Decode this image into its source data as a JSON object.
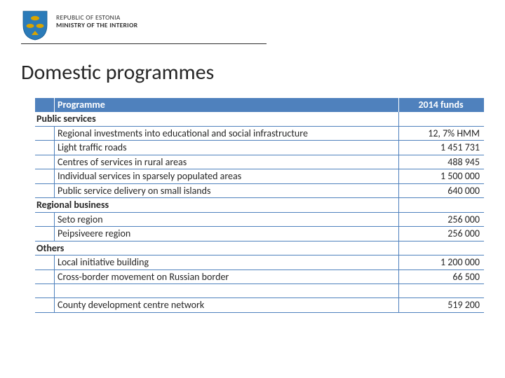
{
  "header": {
    "org_top": "REPUBLIC OF ESTONIA",
    "org_bottom": "MINISTRY OF THE INTERIOR",
    "crest_color": "#2b7bb9"
  },
  "title": "Domestic programmes",
  "table": {
    "header_bg": "#4f81bd",
    "border_color": "#4f81bd",
    "col_programme": "Programme",
    "col_funds": "2014 funds",
    "sections": [
      {
        "name": "Public services",
        "rows": [
          {
            "label": "Regional investments into educational and social infrastructure",
            "value": "12, 7% HMM"
          },
          {
            "label": "Light traffic roads",
            "value": "1 451 731"
          },
          {
            "label": "Centres of services in rural areas",
            "value": "488 945"
          },
          {
            "label": "Individual services in sparsely populated areas",
            "value": "1 500 000"
          },
          {
            "label": "Public service delivery on small islands",
            "value": "640 000"
          }
        ]
      },
      {
        "name": "Regional business",
        "rows": [
          {
            "label": "Seto region",
            "value": "256 000"
          },
          {
            "label": "Peipsiveere region",
            "value": "256 000"
          }
        ]
      },
      {
        "name": "Others",
        "rows": [
          {
            "label": "Local initiative building",
            "value": "1 200 000"
          },
          {
            "label": "Cross-border movement on Russian border",
            "value": "66 500"
          }
        ]
      }
    ],
    "trailing": [
      {
        "label": "County development centre network",
        "value": "519 200"
      }
    ]
  }
}
